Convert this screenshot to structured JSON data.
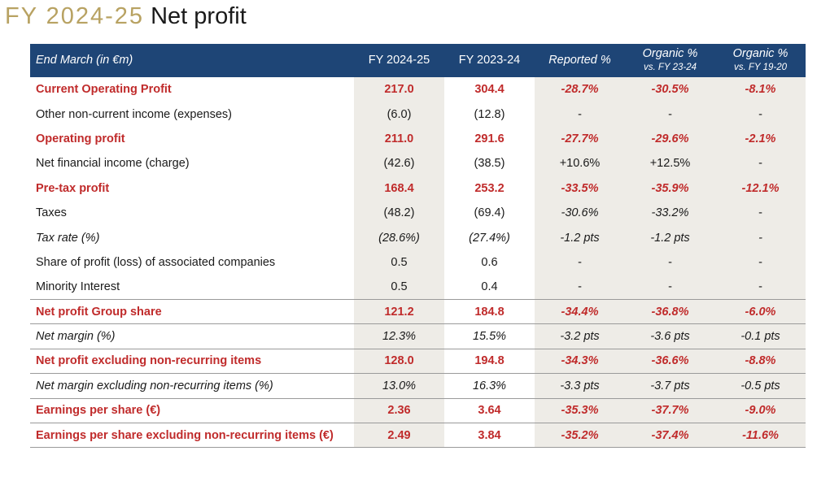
{
  "title": {
    "fy": "FY 2024-25",
    "text": "Net profit"
  },
  "header": {
    "col0": "End March (in €m)",
    "col1": "FY 2024-25",
    "col2": "FY 2023-24",
    "col3": "Reported %",
    "col4_l1": "Organic %",
    "col4_l2": "vs. FY 23-24",
    "col5_l1": "Organic %",
    "col5_l2": "vs. FY 19-20"
  },
  "rows": [
    {
      "label": "Current Operating Profit",
      "fy2425": "217.0",
      "fy2324": "304.4",
      "reported": "-28.7%",
      "org2324": "-30.5%",
      "org1920": "-8.1%"
    },
    {
      "label": "Other non-current income (expenses)",
      "fy2425": "(6.0)",
      "fy2324": "(12.8)",
      "reported": "-",
      "org2324": "-",
      "org1920": "-"
    },
    {
      "label": "Operating profit",
      "fy2425": "211.0",
      "fy2324": "291.6",
      "reported": "-27.7%",
      "org2324": "-29.6%",
      "org1920": "-2.1%"
    },
    {
      "label": "Net financial income (charge)",
      "fy2425": "(42.6)",
      "fy2324": "(38.5)",
      "reported": "+10.6%",
      "org2324": "+12.5%",
      "org1920": "-"
    },
    {
      "label": "Pre-tax profit",
      "fy2425": "168.4",
      "fy2324": "253.2",
      "reported": "-33.5%",
      "org2324": "-35.9%",
      "org1920": "-12.1%"
    },
    {
      "label": "Taxes",
      "fy2425": "(48.2)",
      "fy2324": "(69.4)",
      "reported": "-30.6%",
      "org2324": "-33.2%",
      "org1920": "-"
    },
    {
      "label": "Tax rate (%)",
      "fy2425": "(28.6%)",
      "fy2324": "(27.4%)",
      "reported": "-1.2 pts",
      "org2324": "-1.2 pts",
      "org1920": "-"
    },
    {
      "label": "Share of profit (loss) of associated companies",
      "fy2425": "0.5",
      "fy2324": "0.6",
      "reported": "-",
      "org2324": "-",
      "org1920": "-"
    },
    {
      "label": "Minority Interest",
      "fy2425": "0.5",
      "fy2324": "0.4",
      "reported": "-",
      "org2324": "-",
      "org1920": "-"
    },
    {
      "label": "Net profit Group share",
      "fy2425": "121.2",
      "fy2324": "184.8",
      "reported": "-34.4%",
      "org2324": "-36.8%",
      "org1920": "-6.0%"
    },
    {
      "label": "Net margin (%)",
      "fy2425": "12.3%",
      "fy2324": "15.5%",
      "reported": "-3.2 pts",
      "org2324": "-3.6 pts",
      "org1920": "-0.1 pts"
    },
    {
      "label": "Net profit excluding non-recurring items",
      "fy2425": "128.0",
      "fy2324": "194.8",
      "reported": "-34.3%",
      "org2324": "-36.6%",
      "org1920": "-8.8%"
    },
    {
      "label": "Net margin excluding non-recurring items (%)",
      "fy2425": "13.0%",
      "fy2324": "16.3%",
      "reported": "-3.3 pts",
      "org2324": "-3.7 pts",
      "org1920": "-0.5 pts"
    },
    {
      "label": "Earnings per share (€)",
      "fy2425": "2.36",
      "fy2324": "3.64",
      "reported": "-35.3%",
      "org2324": "-37.7%",
      "org1920": "-9.0%"
    },
    {
      "label": "Earnings per share excluding non-recurring items (€)",
      "fy2425": "2.49",
      "fy2324": "3.84",
      "reported": "-35.2%",
      "org2324": "-37.4%",
      "org1920": "-11.6%"
    }
  ],
  "colors": {
    "header_bg": "#1e4576",
    "highlight_red": "#c02b2b",
    "shade": "#eeece7",
    "title_gold": "#b8a262"
  }
}
